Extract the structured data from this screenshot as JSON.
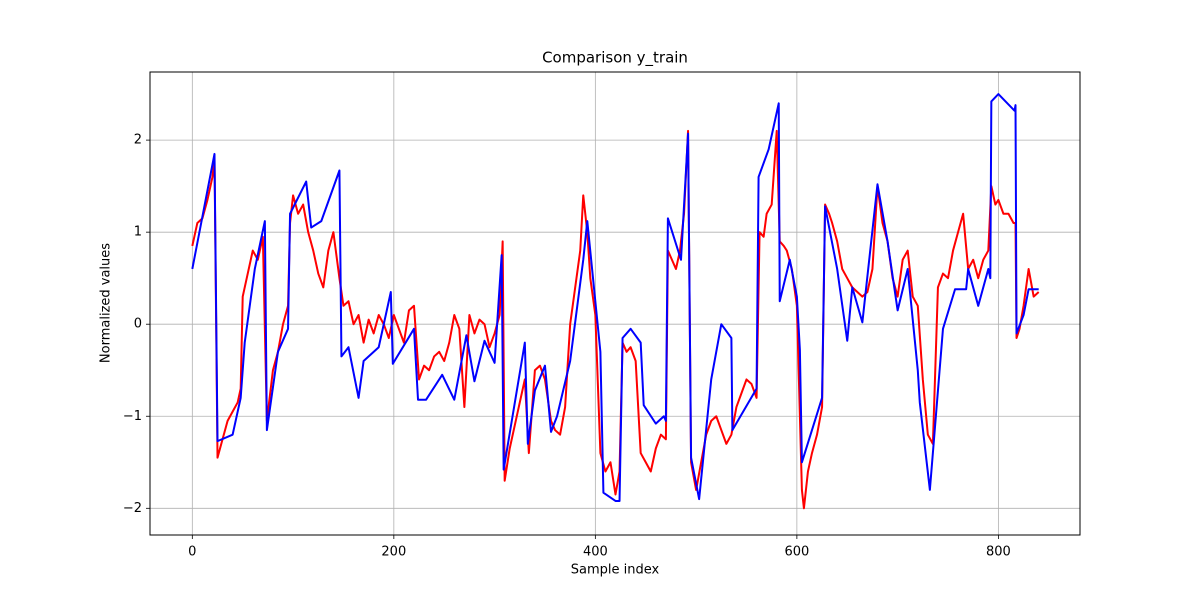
{
  "chart_data": {
    "type": "line",
    "title": "Comparison y_train",
    "x_label": "Sample index",
    "y_label": "Normalized values",
    "xlim": [
      -42,
      881
    ],
    "ylim": [
      -2.29,
      2.74
    ],
    "xticks": [
      0,
      200,
      400,
      600,
      800
    ],
    "yticks": [
      {
        "value": -2,
        "label": "−2"
      },
      {
        "value": -1,
        "label": "−1"
      },
      0,
      1,
      2
    ],
    "grid": true,
    "series": [
      {
        "color": "#ff0000",
        "x": [
          0,
          5,
          10,
          15,
          20,
          22,
          25,
          30,
          35,
          40,
          45,
          48,
          50,
          55,
          60,
          65,
          70,
          74,
          80,
          85,
          90,
          95,
          97,
          100,
          105,
          110,
          115,
          120,
          125,
          130,
          135,
          140,
          146,
          150,
          155,
          160,
          165,
          170,
          175,
          180,
          185,
          190,
          195,
          200,
          205,
          210,
          215,
          220,
          225,
          230,
          235,
          240,
          245,
          250,
          255,
          260,
          265,
          270,
          275,
          280,
          285,
          290,
          295,
          300,
          305,
          308,
          310,
          315,
          320,
          325,
          330,
          334,
          340,
          345,
          350,
          356,
          360,
          365,
          370,
          375,
          380,
          385,
          388,
          392,
          395,
          400,
          405,
          410,
          415,
          420,
          424,
          427,
          431,
          435,
          440,
          445,
          450,
          455,
          460,
          465,
          470,
          472,
          476,
          480,
          484,
          488,
          492,
          495,
          500,
          505,
          510,
          515,
          520,
          525,
          530,
          535,
          540,
          545,
          550,
          555,
          560,
          563,
          567,
          570,
          575,
          580,
          583,
          587,
          590,
          595,
          600,
          605,
          607,
          611,
          615,
          620,
          625,
          628,
          632,
          635,
          640,
          645,
          650,
          655,
          660,
          665,
          670,
          675,
          680,
          685,
          690,
          695,
          700,
          705,
          710,
          715,
          720,
          725,
          730,
          735,
          740,
          745,
          750,
          755,
          760,
          765,
          770,
          775,
          780,
          785,
          790,
          793,
          797,
          800,
          805,
          810,
          815,
          817,
          818,
          821,
          825,
          830,
          835,
          840
        ],
        "values": [
          0.85,
          1.1,
          1.15,
          1.35,
          1.6,
          1.8,
          -1.45,
          -1.25,
          -1.05,
          -0.95,
          -0.85,
          -0.7,
          0.3,
          0.55,
          0.8,
          0.7,
          0.95,
          -1.05,
          -0.5,
          -0.3,
          0.0,
          0.2,
          1.1,
          1.4,
          1.2,
          1.3,
          1.0,
          0.8,
          0.55,
          0.4,
          0.8,
          1.0,
          0.5,
          0.2,
          0.25,
          0.0,
          0.1,
          -0.2,
          0.05,
          -0.1,
          0.1,
          0.0,
          -0.15,
          0.1,
          -0.05,
          -0.2,
          0.15,
          0.2,
          -0.6,
          -0.45,
          -0.5,
          -0.35,
          -0.3,
          -0.4,
          -0.2,
          0.1,
          -0.05,
          -0.9,
          0.1,
          -0.1,
          0.05,
          0.0,
          -0.25,
          -0.1,
          0.1,
          0.9,
          -1.7,
          -1.35,
          -1.1,
          -0.85,
          -0.6,
          -1.4,
          -0.5,
          -0.45,
          -0.6,
          -1.05,
          -1.15,
          -1.2,
          -0.9,
          0.0,
          0.4,
          0.8,
          1.4,
          1.0,
          0.5,
          0.1,
          -1.4,
          -1.6,
          -1.5,
          -1.85,
          -1.6,
          -0.2,
          -0.3,
          -0.25,
          -0.4,
          -1.4,
          -1.5,
          -1.6,
          -1.35,
          -1.2,
          -1.25,
          0.8,
          0.7,
          0.6,
          0.8,
          1.2,
          2.1,
          -1.5,
          -1.8,
          -1.5,
          -1.2,
          -1.05,
          -1.0,
          -1.15,
          -1.3,
          -1.2,
          -0.9,
          -0.75,
          -0.6,
          -0.65,
          -0.8,
          1.0,
          0.95,
          1.2,
          1.3,
          2.1,
          0.9,
          0.85,
          0.8,
          0.6,
          0.2,
          -1.8,
          -2.0,
          -1.6,
          -1.4,
          -1.2,
          -0.9,
          1.3,
          1.2,
          1.1,
          0.9,
          0.6,
          0.5,
          0.4,
          0.35,
          0.3,
          0.35,
          0.6,
          1.5,
          1.1,
          0.9,
          0.5,
          0.3,
          0.7,
          0.8,
          0.3,
          0.2,
          -0.6,
          -1.2,
          -1.3,
          0.4,
          0.55,
          0.5,
          0.8,
          1.0,
          1.2,
          0.6,
          0.7,
          0.5,
          0.7,
          0.8,
          1.5,
          1.3,
          1.35,
          1.2,
          1.2,
          1.1,
          1.1,
          -0.15,
          -0.05,
          0.2,
          0.6,
          0.3,
          0.35
        ]
      },
      {
        "color": "#0000ff",
        "x": [
          0,
          22,
          25,
          40,
          48,
          52,
          62,
          72,
          74,
          85,
          95,
          97,
          113,
          118,
          128,
          146,
          148,
          155,
          165,
          170,
          185,
          197,
          199,
          220,
          224,
          232,
          248,
          260,
          272,
          280,
          290,
          300,
          307,
          309,
          330,
          333,
          340,
          350,
          356,
          362,
          375,
          388,
          392,
          405,
          408,
          420,
          424,
          427,
          435,
          445,
          448,
          460,
          468,
          470,
          472,
          485,
          492,
          495,
          503,
          515,
          525,
          535,
          536,
          560,
          562,
          572,
          582,
          583,
          593,
          600,
          603,
          605,
          625,
          628,
          640,
          650,
          655,
          665,
          680,
          690,
          700,
          710,
          720,
          722,
          732,
          745,
          757,
          768,
          770,
          780,
          790,
          792,
          793,
          800,
          816,
          817,
          818,
          825,
          830,
          840
        ],
        "values": [
          0.6,
          1.85,
          -1.27,
          -1.2,
          -0.8,
          -0.2,
          0.6,
          1.12,
          -1.15,
          -0.3,
          -0.05,
          1.2,
          1.55,
          1.05,
          1.12,
          1.67,
          -0.35,
          -0.25,
          -0.8,
          -0.4,
          -0.25,
          0.35,
          -0.43,
          -0.05,
          -0.82,
          -0.82,
          -0.55,
          -0.82,
          -0.12,
          -0.62,
          -0.18,
          -0.42,
          0.75,
          -1.58,
          -0.2,
          -1.3,
          -0.72,
          -0.45,
          -1.17,
          -1.0,
          -0.4,
          0.7,
          1.12,
          -0.3,
          -1.83,
          -1.92,
          -1.92,
          -0.15,
          -0.05,
          -0.2,
          -0.88,
          -1.08,
          -1.0,
          -1.05,
          1.15,
          0.7,
          2.07,
          -1.45,
          -1.9,
          -0.6,
          0.0,
          -0.15,
          -1.15,
          -0.7,
          1.6,
          1.9,
          2.4,
          0.25,
          0.7,
          0.3,
          -0.28,
          -1.5,
          -0.8,
          1.28,
          0.6,
          -0.18,
          0.4,
          0.02,
          1.52,
          0.9,
          0.15,
          0.6,
          -0.5,
          -0.85,
          -1.8,
          -0.05,
          0.38,
          0.38,
          0.6,
          0.2,
          0.6,
          0.5,
          2.42,
          2.5,
          2.32,
          2.38,
          -0.1,
          0.1,
          0.38,
          0.38
        ]
      }
    ]
  }
}
